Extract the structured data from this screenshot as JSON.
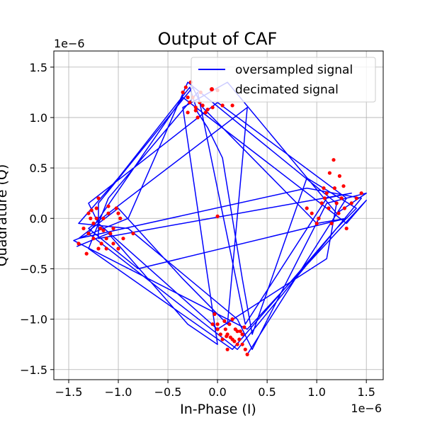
{
  "chart_data": {
    "type": "scatter",
    "title": "Output of CAF",
    "xlabel": "In-Phase (I)",
    "ylabel": "Quadrature (Q)",
    "x_offset_text": "1e−6",
    "y_offset_text": "1e−6",
    "xlim": [
      -1.65,
      1.67
    ],
    "ylim": [
      -1.6,
      1.66
    ],
    "x_ticks": [
      -1.5,
      -1.0,
      -0.5,
      0.0,
      0.5,
      1.0,
      1.5
    ],
    "x_tick_labels": [
      "−1.5",
      "−1.0",
      "−0.5",
      "0.0",
      "0.5",
      "1.0",
      "1.5"
    ],
    "y_ticks": [
      -1.5,
      -1.0,
      -0.5,
      0.0,
      0.5,
      1.0,
      1.5
    ],
    "y_tick_labels": [
      "−1.5",
      "−1.0",
      "−0.5",
      "0.0",
      "0.5",
      "1.0",
      "1.5"
    ],
    "grid": true,
    "legend_position": "top-right",
    "series": [
      {
        "name": "oversampled signal",
        "style": "line",
        "color": "#0000ff",
        "x": [
          -1.42,
          -1.1,
          -0.3,
          0.0,
          -0.35,
          0.1,
          1.2,
          1.5,
          1.1,
          0.35,
          0.2,
          -0.9,
          -1.4,
          -1.0,
          -0.28,
          -0.2,
          -0.1,
          0.05,
          0.25,
          0.35,
          0.9,
          1.4,
          1.2,
          0.15,
          -1.3,
          -1.1,
          -0.2,
          0.28,
          1.1,
          1.35,
          -1.2,
          -1.2,
          -0.25,
          -0.15,
          1.0,
          1.3,
          -0.8,
          -1.3,
          0.3,
          0.1,
          -0.35,
          -1.0,
          -1.4,
          0.9,
          1.45,
          0.2,
          -1.3,
          -0.35,
          1.3,
          1.5,
          0.3,
          -1.45,
          -0.9,
          -0.3,
          1.2,
          1.1,
          0.0,
          -1.2,
          -1.3,
          0.0,
          1.3,
          0.3
        ],
        "y": [
          -0.28,
          -0.15,
          -1.05,
          -1.25,
          1.1,
          1.35,
          0.05,
          0.25,
          0.15,
          -1.3,
          -1.0,
          -0.1,
          -0.05,
          0.4,
          1.3,
          1.05,
          0.9,
          0.6,
          -0.6,
          -1.15,
          0.4,
          0.1,
          -0.1,
          -1.3,
          -0.3,
          0.2,
          1.25,
          -1.05,
          0.2,
          0.25,
          -0.2,
          0.15,
          1.3,
          1.1,
          -0.05,
          0.0,
          -0.5,
          -0.1,
          1.1,
          -1.05,
          -0.6,
          0.1,
          -0.2,
          0.3,
          0.2,
          -1.3,
          -0.15,
          1.2,
          -0.05,
          0.18,
          -1.1,
          -0.22,
          0.0,
          1.35,
          0.15,
          -0.4,
          -1.1,
          -0.05,
          0.15,
          1.15,
          0.2,
          -1.35
        ]
      },
      {
        "name": "decimated signal",
        "style": "marker",
        "color": "#ff0000",
        "x": [
          -1.4,
          -1.35,
          -1.3,
          -1.28,
          -1.25,
          -1.22,
          -1.2,
          -1.18,
          -1.15,
          -1.12,
          -1.1,
          -1.08,
          -1.05,
          -1.02,
          -1.0,
          -0.98,
          -0.95,
          -0.85,
          -1.3,
          -1.25,
          -1.2,
          -1.15,
          -1.1,
          -1.05,
          -1.0,
          -1.22,
          -1.17,
          -1.12,
          -1.32,
          -1.27,
          -0.35,
          -0.32,
          -0.3,
          -0.28,
          -0.25,
          -0.22,
          -0.2,
          -0.17,
          -0.15,
          -0.12,
          -0.1,
          -0.05,
          0.0,
          0.05,
          -0.3,
          -0.27,
          -0.22,
          -0.18,
          0.15,
          1.02,
          1.05,
          1.08,
          1.1,
          1.12,
          1.15,
          1.18,
          1.2,
          1.22,
          1.25,
          1.28,
          1.3,
          1.35,
          1.4,
          1.45,
          0.9,
          0.95,
          1.0,
          1.07,
          1.13,
          1.17,
          1.23,
          1.27,
          0.0,
          0.0,
          -0.05,
          0.0,
          0.05,
          0.08,
          0.1,
          0.12,
          0.15,
          0.18,
          0.2,
          0.22,
          0.25,
          0.28,
          0.3,
          0.1,
          0.15,
          0.2,
          0.25,
          -0.03,
          0.03,
          0.07,
          0.13,
          0.17,
          0.23,
          0.27,
          0.09
        ],
        "y": [
          -0.25,
          -0.1,
          -0.15,
          0.0,
          -0.2,
          0.1,
          0.2,
          -0.1,
          0.0,
          -0.2,
          0.05,
          -0.15,
          -0.1,
          0.1,
          -0.3,
          0.0,
          -0.2,
          -0.15,
          0.05,
          -0.05,
          -0.3,
          -0.12,
          0.12,
          -0.25,
          0.05,
          0.0,
          -0.25,
          -0.3,
          -0.35,
          0.08,
          1.25,
          1.3,
          1.05,
          1.15,
          1.2,
          1.1,
          1.0,
          1.25,
          1.12,
          1.05,
          1.08,
          1.1,
          1.27,
          1.12,
          1.2,
          1.35,
          1.07,
          1.15,
          1.12,
          0.0,
          0.15,
          0.2,
          0.25,
          0.1,
          -0.05,
          0.3,
          0.15,
          0.05,
          0.2,
          0.1,
          -0.1,
          0.15,
          0.2,
          0.25,
          0.1,
          0.05,
          -0.05,
          0.3,
          0.45,
          0.58,
          0.42,
          0.32,
          0.02,
          -1.05,
          -1.05,
          -1.1,
          -1.2,
          -1.1,
          -1.15,
          -1.05,
          -1.0,
          -1.1,
          -1.25,
          -1.2,
          -1.15,
          -1.3,
          -1.35,
          -1.3,
          -1.2,
          -1.12,
          -1.25,
          -0.95,
          -1.15,
          -1.02,
          -1.18,
          -1.22,
          -1.12,
          -1.08,
          -1.17
        ]
      }
    ]
  }
}
